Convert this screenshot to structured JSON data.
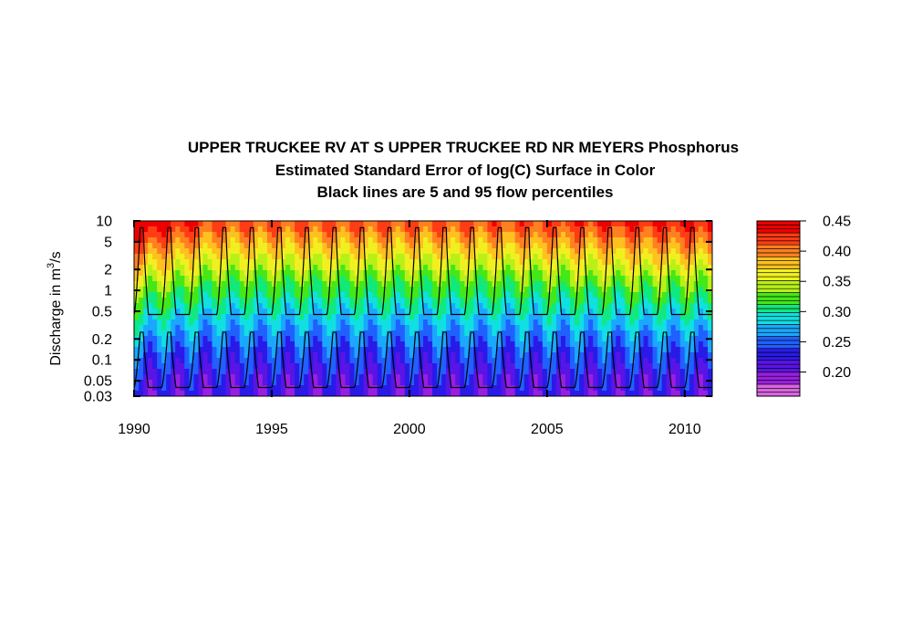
{
  "chart_data": {
    "type": "heatmap",
    "title": "UPPER TRUCKEE RV AT S UPPER TRUCKEE RD NR MEYERS    Phosphorus",
    "subtitle": "Estimated Standard Error of log(C) Surface in Color",
    "subtitle2": "Black lines are 5 and 95 flow percentiles",
    "ylabel_main": "Discharge in m",
    "ylabel_sup": "3",
    "ylabel_tail": "/s",
    "y_scale": "log",
    "ylim": [
      0.03,
      10
    ],
    "xlim": [
      1990,
      2011
    ],
    "x_ticks": [
      "1990",
      "1995",
      "2000",
      "2005",
      "2010"
    ],
    "x_tick_values": [
      1990,
      1995,
      2000,
      2005,
      2010
    ],
    "y_ticks": [
      "0.03",
      "0.05",
      "0.1",
      "0.2",
      "0.5",
      "1",
      "2",
      "5",
      "10"
    ],
    "y_tick_values": [
      0.03,
      0.05,
      0.1,
      0.2,
      0.5,
      1,
      2,
      5,
      10
    ],
    "colorbar": {
      "range": [
        0.16,
        0.45
      ],
      "tick_labels": [
        "0.20",
        "0.25",
        "0.30",
        "0.35",
        "0.40",
        "0.45"
      ],
      "tick_values": [
        0.2,
        0.25,
        0.3,
        0.35,
        0.4,
        0.45
      ],
      "palette": [
        "#d966e0",
        "#9a1ee0",
        "#5a14e6",
        "#2a1ae8",
        "#2060ff",
        "#1aa8ff",
        "#10e0e0",
        "#10e880",
        "#44e818",
        "#b8f018",
        "#f0f020",
        "#ffc020",
        "#ff8020",
        "#ff3c14",
        "#ee0000"
      ]
    },
    "flow_percentiles": {
      "p95": {
        "low": 0.45,
        "high": 8.0
      },
      "p5": {
        "low": 0.04,
        "high": 0.25
      },
      "cycles_per_year": 1
    }
  }
}
